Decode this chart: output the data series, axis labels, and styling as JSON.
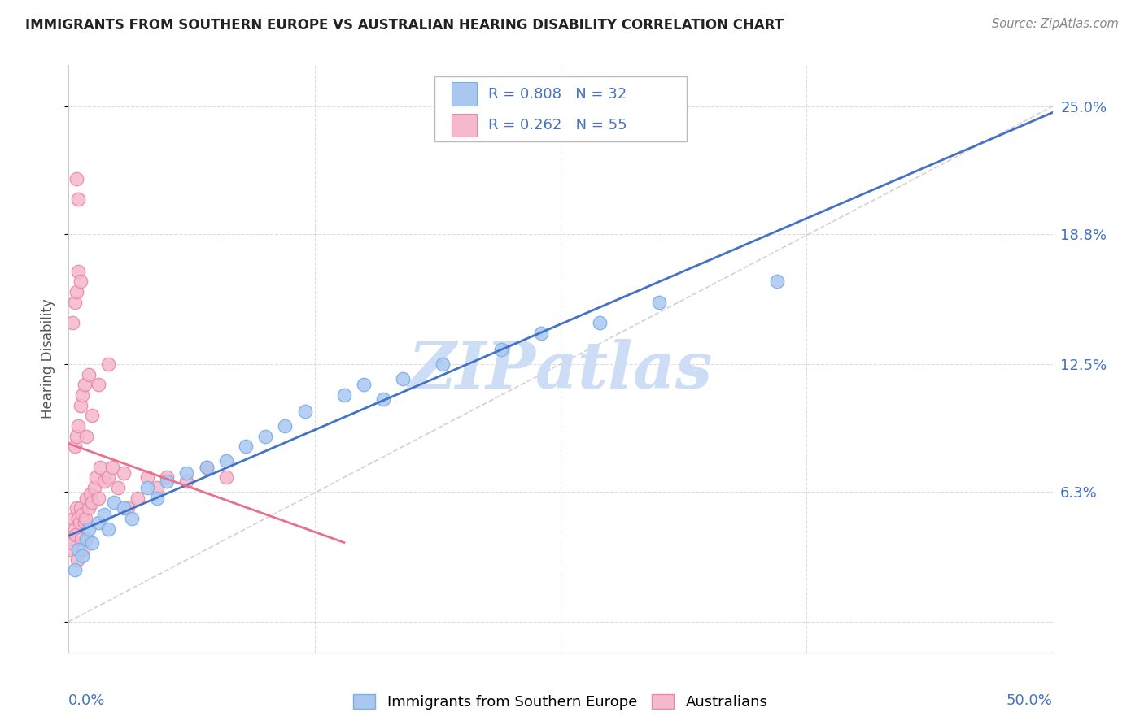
{
  "title": "IMMIGRANTS FROM SOUTHERN EUROPE VS AUSTRALIAN HEARING DISABILITY CORRELATION CHART",
  "source": "Source: ZipAtlas.com",
  "ylabel": "Hearing Disability",
  "series1_label": "Immigrants from Southern Europe",
  "series1_color": "#a8c8f0",
  "series1_edge": "#7aaee8",
  "series1_line": "#4472c4",
  "series1_R": 0.808,
  "series1_N": 32,
  "series2_label": "Australians",
  "series2_color": "#f5b8cc",
  "series2_edge": "#e888a8",
  "series2_line": "#e8708a",
  "series2_R": 0.262,
  "series2_N": 55,
  "ytick_vals": [
    0.0,
    6.3,
    12.5,
    18.8,
    25.0
  ],
  "ytick_labels": [
    "",
    "6.3%",
    "12.5%",
    "18.8%",
    "25.0%"
  ],
  "xlim": [
    0,
    50
  ],
  "ylim": [
    -1.5,
    27
  ],
  "grid_color": "#dddddd",
  "diag_color": "#cccccc",
  "legend_border": "#bbbbbb",
  "axis_label_color": "#4472c4",
  "title_color": "#222222",
  "source_color": "#888888",
  "series1_x": [
    0.3,
    0.5,
    0.7,
    0.9,
    1.0,
    1.2,
    1.5,
    1.8,
    2.0,
    2.3,
    2.8,
    3.2,
    4.0,
    4.5,
    5.0,
    6.0,
    7.0,
    8.0,
    9.0,
    10.0,
    11.0,
    12.0,
    14.0,
    15.0,
    16.0,
    17.0,
    19.0,
    22.0,
    24.0,
    27.0,
    30.0,
    36.0
  ],
  "series1_y": [
    2.5,
    3.5,
    3.2,
    4.0,
    4.5,
    3.8,
    4.8,
    5.2,
    4.5,
    5.8,
    5.5,
    5.0,
    6.5,
    6.0,
    6.8,
    7.2,
    7.5,
    7.8,
    8.5,
    9.0,
    9.5,
    10.2,
    11.0,
    11.5,
    10.8,
    11.8,
    12.5,
    13.2,
    14.0,
    14.5,
    15.5,
    16.5
  ],
  "series2_x": [
    0.1,
    0.15,
    0.2,
    0.25,
    0.3,
    0.35,
    0.4,
    0.45,
    0.5,
    0.55,
    0.6,
    0.65,
    0.7,
    0.75,
    0.8,
    0.85,
    0.9,
    1.0,
    1.1,
    1.2,
    1.3,
    1.4,
    1.5,
    1.6,
    1.8,
    2.0,
    2.2,
    2.5,
    2.8,
    3.0,
    3.5,
    4.0,
    4.5,
    5.0,
    6.0,
    7.0,
    0.3,
    0.4,
    0.5,
    0.6,
    0.7,
    0.8,
    0.9,
    1.0,
    1.2,
    1.5,
    2.0,
    0.2,
    0.3,
    0.4,
    0.5,
    0.6,
    8.0,
    0.4,
    0.5
  ],
  "series2_y": [
    3.5,
    4.0,
    3.8,
    5.0,
    4.5,
    4.2,
    5.5,
    3.0,
    5.0,
    4.8,
    5.5,
    4.0,
    5.2,
    3.5,
    4.8,
    5.0,
    6.0,
    5.5,
    6.2,
    5.8,
    6.5,
    7.0,
    6.0,
    7.5,
    6.8,
    7.0,
    7.5,
    6.5,
    7.2,
    5.5,
    6.0,
    7.0,
    6.5,
    7.0,
    6.8,
    7.5,
    8.5,
    9.0,
    9.5,
    10.5,
    11.0,
    11.5,
    9.0,
    12.0,
    10.0,
    11.5,
    12.5,
    14.5,
    15.5,
    16.0,
    17.0,
    16.5,
    7.0,
    21.5,
    20.5
  ]
}
